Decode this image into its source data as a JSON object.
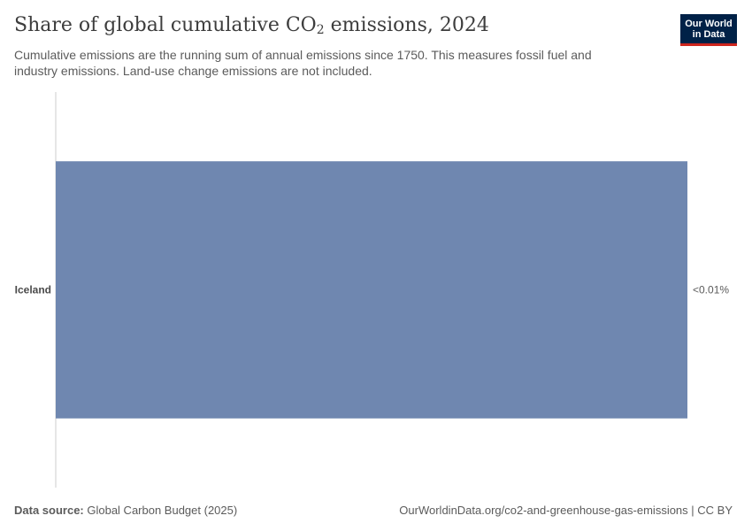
{
  "header": {
    "title_main": "Share of global cumulative CO",
    "title_sub": "2",
    "title_tail": " emissions, 2024",
    "subtitle": "Cumulative emissions are the running sum of annual emissions since 1750. This measures fossil fuel and industry emissions. Land-use change emissions are not included.",
    "logo_line1": "Our World",
    "logo_line2": "in Data"
  },
  "chart_data": {
    "type": "bar",
    "orientation": "horizontal",
    "categories": [
      "Iceland"
    ],
    "values": [
      0.0049
    ],
    "value_labels": [
      "<0.01%"
    ],
    "bar_color": "#6f87b0",
    "axis_color": "#cccccc"
  },
  "footer": {
    "source_label": "Data source:",
    "source_text": " Global Carbon Budget (2025)",
    "url_text": "OurWorldinData.org/co2-and-greenhouse-gas-emissions | CC BY"
  }
}
